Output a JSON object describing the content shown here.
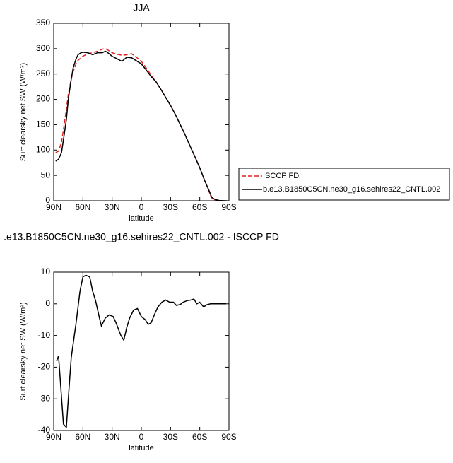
{
  "chart_data": [
    {
      "type": "line",
      "title": "JJA",
      "xlabel": "latitude",
      "ylabel": "Surf clearsky net SW (W/m²)",
      "x": [
        88,
        85,
        82,
        80,
        77,
        75,
        72,
        70,
        67,
        65,
        62,
        60,
        55,
        50,
        45,
        40,
        37,
        35,
        30,
        25,
        20,
        15,
        10,
        5,
        0,
        -5,
        -10,
        -15,
        -20,
        -25,
        -30,
        -35,
        -40,
        -45,
        -50,
        -55,
        -60,
        -65,
        -70,
        -72,
        -75,
        -80,
        -85,
        -88
      ],
      "series": [
        {
          "name": "ISCCP FD",
          "color": "#e02020",
          "style": "dashed",
          "values": [
            95,
            98,
            115,
            140,
            180,
            210,
            240,
            255,
            270,
            277,
            282,
            285,
            290,
            292,
            295,
            299,
            300,
            298,
            292,
            289,
            287,
            288,
            290,
            283,
            275,
            262,
            248,
            235,
            220,
            204,
            188,
            170,
            150,
            130,
            108,
            87,
            65,
            40,
            16,
            6,
            2,
            0,
            0,
            0
          ]
        },
        {
          "name": "b.e13.B1850C5CN.ne30_g16.sehires22_CNTL.002",
          "color": "#000000",
          "style": "solid",
          "values": [
            78,
            82,
            95,
            120,
            160,
            200,
            240,
            262,
            280,
            288,
            292,
            293,
            292,
            288,
            292,
            292,
            295,
            293,
            285,
            280,
            275,
            283,
            282,
            276,
            270,
            258,
            245,
            235,
            220,
            204,
            188,
            170,
            150,
            130,
            108,
            87,
            65,
            40,
            18,
            8,
            3,
            0.5,
            0,
            0
          ]
        }
      ],
      "xlim": [
        90,
        -90
      ],
      "xticks": [
        {
          "value": 90,
          "label": "90N"
        },
        {
          "value": 60,
          "label": "60N"
        },
        {
          "value": 30,
          "label": "30N"
        },
        0,
        {
          "value": -30,
          "label": "30S"
        },
        {
          "value": -60,
          "label": "60S"
        },
        {
          "value": -90,
          "label": "90S"
        }
      ],
      "ylim": [
        0,
        350
      ],
      "yticks": [
        0,
        50,
        100,
        150,
        200,
        250,
        300,
        350
      ]
    },
    {
      "type": "line",
      "title": ".e13.B1850C5CN.ne30_g16.sehires22_CNTL.002 - ISCCP FD",
      "xlabel": "latitude",
      "ylabel": "Surf clearsky net SW (W/m²)",
      "x": [
        87,
        85,
        80,
        77,
        75,
        72,
        67,
        63,
        60,
        57,
        53,
        50,
        47,
        43,
        41,
        37,
        33,
        29,
        26,
        21,
        18,
        15,
        12,
        8,
        4,
        0,
        -4,
        -7,
        -10,
        -14,
        -17,
        -21,
        -25,
        -29,
        -33,
        -36,
        -40,
        -43,
        -47,
        -51,
        -54,
        -57,
        -60,
        -64,
        -67,
        -71,
        -76,
        -83,
        -87
      ],
      "series": [
        {
          "color": "#000000",
          "style": "solid",
          "values": [
            -18,
            -16.5,
            -38,
            -39,
            -30,
            -17,
            -6,
            4,
            8.5,
            9,
            8.5,
            4,
            1,
            -4.5,
            -7,
            -4.5,
            -3.5,
            -4,
            -6,
            -10,
            -11.5,
            -7.5,
            -4.5,
            -2,
            -1.5,
            -4,
            -5,
            -6.5,
            -6,
            -3,
            -1,
            0.5,
            1.2,
            0.5,
            0.5,
            -0.5,
            -0.2,
            0.5,
            1,
            1.2,
            1.5,
            0,
            0.5,
            -1,
            -0.3,
            0,
            0,
            0,
            0
          ]
        }
      ],
      "xlim": [
        90,
        -90
      ],
      "xticks": [
        {
          "value": 90,
          "label": "90N"
        },
        {
          "value": 60,
          "label": "60N"
        },
        {
          "value": 30,
          "label": "30N"
        },
        0,
        {
          "value": -30,
          "label": "30S"
        },
        {
          "value": -60,
          "label": "60S"
        },
        {
          "value": -90,
          "label": "90S"
        }
      ],
      "ylim": [
        -40,
        10
      ],
      "yticks": [
        -40,
        -30,
        -20,
        -10,
        0,
        10
      ]
    }
  ]
}
